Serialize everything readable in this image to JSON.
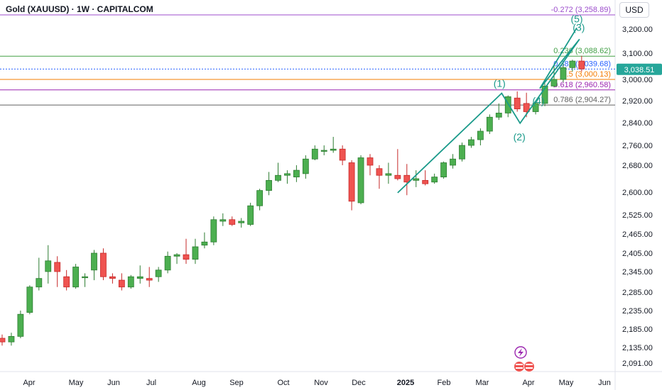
{
  "header": {
    "symbol_title": "Gold (XAUUSD) · 1W · CAPITALCOM",
    "currency_label": "USD"
  },
  "colors": {
    "up_fill": "#4caf50",
    "up_border": "#2e7d32",
    "down_fill": "#ef5350",
    "down_border": "#c62828",
    "wave": "#1a9a8a",
    "last_price_badge": "#26a69a"
  },
  "chart_data": {
    "type": "candlestick",
    "title": "Gold (XAUUSD) · 1W · CAPITALCOM",
    "ylim": [
      2060,
      3295
    ],
    "y_ticks": [
      "3,200.00",
      "3,100.00",
      "3,000.00",
      "2,920.00",
      "2,840.00",
      "2,760.00",
      "2,680.00",
      "2,600.00",
      "2,525.00",
      "2,465.00",
      "2,405.00",
      "2,345.00",
      "2,285.00",
      "2,235.00",
      "2,185.00",
      "2,135.00",
      "2,091.00"
    ],
    "x_tick_labels": [
      {
        "label": "Apr",
        "bold": false
      },
      {
        "label": "May",
        "bold": false
      },
      {
        "label": "Jun",
        "bold": false
      },
      {
        "label": "Jul",
        "bold": false
      },
      {
        "label": "Aug",
        "bold": false
      },
      {
        "label": "Sep",
        "bold": false
      },
      {
        "label": "Oct",
        "bold": false
      },
      {
        "label": "Nov",
        "bold": false
      },
      {
        "label": "Dec",
        "bold": false
      },
      {
        "label": "2025",
        "bold": true
      },
      {
        "label": "Feb",
        "bold": false
      },
      {
        "label": "Mar",
        "bold": false
      },
      {
        "label": "Apr",
        "bold": false
      },
      {
        "label": "May",
        "bold": false
      },
      {
        "label": "Jun",
        "bold": false
      }
    ],
    "candles": [
      {
        "o": 2160,
        "h": 2170,
        "l": 2140,
        "c": 2150
      },
      {
        "o": 2150,
        "h": 2175,
        "l": 2140,
        "c": 2165
      },
      {
        "o": 2165,
        "h": 2235,
        "l": 2160,
        "c": 2225
      },
      {
        "o": 2230,
        "h": 2305,
        "l": 2225,
        "c": 2300
      },
      {
        "o": 2300,
        "h": 2390,
        "l": 2290,
        "c": 2325
      },
      {
        "o": 2345,
        "h": 2430,
        "l": 2310,
        "c": 2380
      },
      {
        "o": 2375,
        "h": 2395,
        "l": 2300,
        "c": 2345
      },
      {
        "o": 2330,
        "h": 2350,
        "l": 2290,
        "c": 2300
      },
      {
        "o": 2300,
        "h": 2370,
        "l": 2295,
        "c": 2360
      },
      {
        "o": 2330,
        "h": 2340,
        "l": 2300,
        "c": 2330
      },
      {
        "o": 2350,
        "h": 2415,
        "l": 2320,
        "c": 2405
      },
      {
        "o": 2405,
        "h": 2420,
        "l": 2320,
        "c": 2330
      },
      {
        "o": 2330,
        "h": 2340,
        "l": 2310,
        "c": 2325
      },
      {
        "o": 2320,
        "h": 2340,
        "l": 2290,
        "c": 2300
      },
      {
        "o": 2300,
        "h": 2335,
        "l": 2295,
        "c": 2330
      },
      {
        "o": 2325,
        "h": 2365,
        "l": 2310,
        "c": 2330
      },
      {
        "o": 2325,
        "h": 2360,
        "l": 2300,
        "c": 2320
      },
      {
        "o": 2330,
        "h": 2360,
        "l": 2315,
        "c": 2350
      },
      {
        "o": 2350,
        "h": 2410,
        "l": 2340,
        "c": 2395
      },
      {
        "o": 2395,
        "h": 2405,
        "l": 2370,
        "c": 2400
      },
      {
        "o": 2400,
        "h": 2450,
        "l": 2370,
        "c": 2385
      },
      {
        "o": 2385,
        "h": 2450,
        "l": 2370,
        "c": 2425
      },
      {
        "o": 2430,
        "h": 2470,
        "l": 2420,
        "c": 2440
      },
      {
        "o": 2440,
        "h": 2520,
        "l": 2430,
        "c": 2510
      },
      {
        "o": 2505,
        "h": 2530,
        "l": 2490,
        "c": 2510
      },
      {
        "o": 2510,
        "h": 2520,
        "l": 2490,
        "c": 2495
      },
      {
        "o": 2500,
        "h": 2515,
        "l": 2485,
        "c": 2505
      },
      {
        "o": 2495,
        "h": 2565,
        "l": 2490,
        "c": 2555
      },
      {
        "o": 2555,
        "h": 2610,
        "l": 2540,
        "c": 2605
      },
      {
        "o": 2605,
        "h": 2660,
        "l": 2590,
        "c": 2635
      },
      {
        "o": 2635,
        "h": 2690,
        "l": 2630,
        "c": 2650
      },
      {
        "o": 2650,
        "h": 2665,
        "l": 2625,
        "c": 2655
      },
      {
        "o": 2645,
        "h": 2680,
        "l": 2630,
        "c": 2665
      },
      {
        "o": 2655,
        "h": 2720,
        "l": 2640,
        "c": 2705
      },
      {
        "o": 2705,
        "h": 2760,
        "l": 2700,
        "c": 2745
      },
      {
        "o": 2740,
        "h": 2760,
        "l": 2720,
        "c": 2740
      },
      {
        "o": 2740,
        "h": 2790,
        "l": 2730,
        "c": 2745
      },
      {
        "o": 2745,
        "h": 2760,
        "l": 2680,
        "c": 2700
      },
      {
        "o": 2690,
        "h": 2700,
        "l": 2540,
        "c": 2570
      },
      {
        "o": 2565,
        "h": 2720,
        "l": 2560,
        "c": 2710
      },
      {
        "o": 2710,
        "h": 2725,
        "l": 2650,
        "c": 2680
      },
      {
        "o": 2670,
        "h": 2680,
        "l": 2610,
        "c": 2650
      },
      {
        "o": 2650,
        "h": 2690,
        "l": 2625,
        "c": 2655
      },
      {
        "o": 2650,
        "h": 2745,
        "l": 2635,
        "c": 2640
      },
      {
        "o": 2650,
        "h": 2685,
        "l": 2590,
        "c": 2630
      },
      {
        "o": 2635,
        "h": 2665,
        "l": 2615,
        "c": 2640
      },
      {
        "o": 2635,
        "h": 2665,
        "l": 2620,
        "c": 2625
      },
      {
        "o": 2630,
        "h": 2655,
        "l": 2625,
        "c": 2645
      },
      {
        "o": 2645,
        "h": 2695,
        "l": 2640,
        "c": 2690
      },
      {
        "o": 2680,
        "h": 2725,
        "l": 2670,
        "c": 2705
      },
      {
        "o": 2705,
        "h": 2770,
        "l": 2695,
        "c": 2760
      },
      {
        "o": 2760,
        "h": 2790,
        "l": 2750,
        "c": 2780
      },
      {
        "o": 2780,
        "h": 2820,
        "l": 2760,
        "c": 2810
      },
      {
        "o": 2810,
        "h": 2870,
        "l": 2800,
        "c": 2860
      },
      {
        "o": 2860,
        "h": 2910,
        "l": 2850,
        "c": 2875
      },
      {
        "o": 2875,
        "h": 2940,
        "l": 2860,
        "c": 2935
      },
      {
        "o": 2930,
        "h": 2955,
        "l": 2880,
        "c": 2890
      },
      {
        "o": 2910,
        "h": 2950,
        "l": 2860,
        "c": 2880
      },
      {
        "o": 2880,
        "h": 2920,
        "l": 2870,
        "c": 2910
      },
      {
        "o": 2910,
        "h": 2985,
        "l": 2900,
        "c": 2975
      },
      {
        "o": 2975,
        "h": 3050,
        "l": 2970,
        "c": 3000
      },
      {
        "o": 3000,
        "h": 3060,
        "l": 2990,
        "c": 3045
      },
      {
        "o": 3045,
        "h": 3075,
        "l": 3030,
        "c": 3070
      },
      {
        "o": 3070,
        "h": 3090,
        "l": 3030,
        "c": 3040
      }
    ],
    "fib_levels": [
      {
        "label": "-0.272 (3,258.89)",
        "value": 3258.89,
        "color": "#9c4dcc"
      },
      {
        "label": "0.236 (3,088.62)",
        "value": 3088.62,
        "color": "#43a047"
      },
      {
        "label": "0.382 (3,039.68)",
        "value": 3039.68,
        "color": "#2962ff"
      },
      {
        "label": "0.5 (3,000.13)",
        "value": 3000.13,
        "color": "#f57c00"
      },
      {
        "label": "0.618 (2,960.58)",
        "value": 2960.58,
        "color": "#9c27b0"
      },
      {
        "label": "0.786 (2,904.27)",
        "value": 2904.27,
        "color": "#616161"
      }
    ],
    "last_price": {
      "label": "3,038.51",
      "value": 3038.51
    },
    "wave_labels": [
      "(1)",
      "(2)",
      "(3)",
      "(4)",
      "(5)"
    ]
  }
}
